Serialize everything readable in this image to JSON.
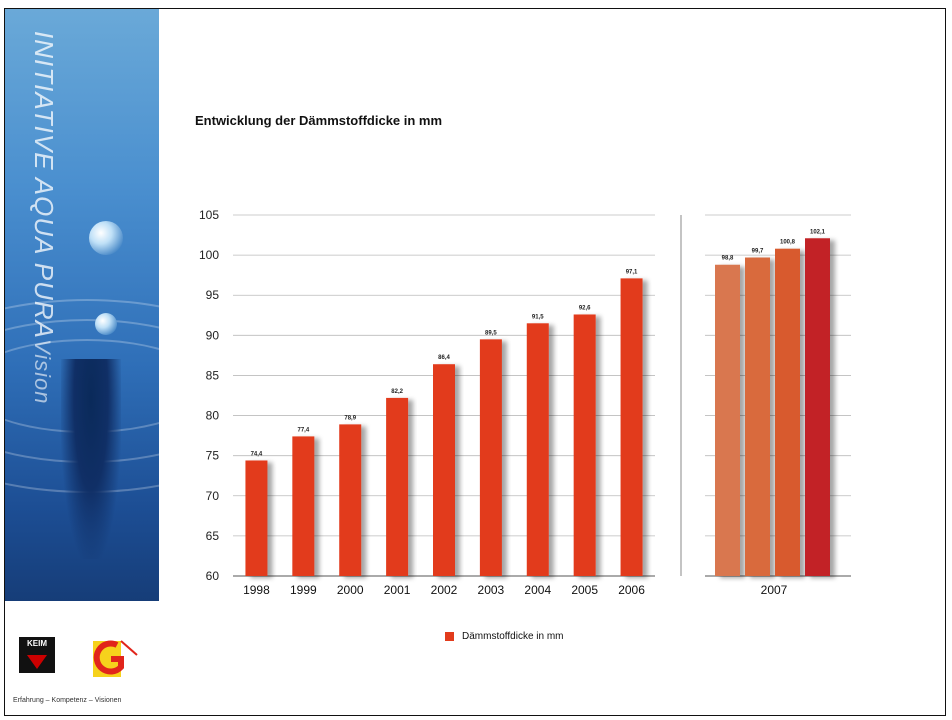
{
  "sidebar": {
    "title_main": "INITIATIVE AQUA PURA",
    "title_sub": "Vision",
    "tagline": "Erfahrung – Kompetenz – Visionen",
    "logo_keim": "KEIM"
  },
  "chart_data": {
    "type": "bar",
    "title": "Entwicklung der Dämmstoffdicke in mm",
    "xlabel": "",
    "ylabel": "",
    "ylim": [
      60,
      105
    ],
    "yticks": [
      60,
      65,
      70,
      75,
      80,
      85,
      90,
      95,
      100,
      105
    ],
    "grid": true,
    "legend": "bottom-center",
    "legend_label": "Dämmstoffdicke in mm",
    "categories": [
      "1998",
      "1999",
      "2000",
      "2001",
      "2002",
      "2003",
      "2004",
      "2005",
      "2006"
    ],
    "values": [
      74.4,
      77.4,
      78.9,
      82.2,
      86.4,
      89.5,
      91.5,
      92.6,
      97.1
    ],
    "data_labels": [
      "74,4",
      "77,4",
      "78,9",
      "82,2",
      "86,4",
      "89,5",
      "91,5",
      "92,6",
      "97,1"
    ],
    "group_2007": {
      "label": "2007",
      "values": [
        98.8,
        99.7,
        100.8,
        102.1
      ],
      "data_labels": [
        "98,8",
        "99,7",
        "100,8",
        "102,1"
      ],
      "colors": [
        "#d9774f",
        "#d96a3d",
        "#d85a2e",
        "#c22127"
      ]
    },
    "color": "#e23b1c"
  }
}
